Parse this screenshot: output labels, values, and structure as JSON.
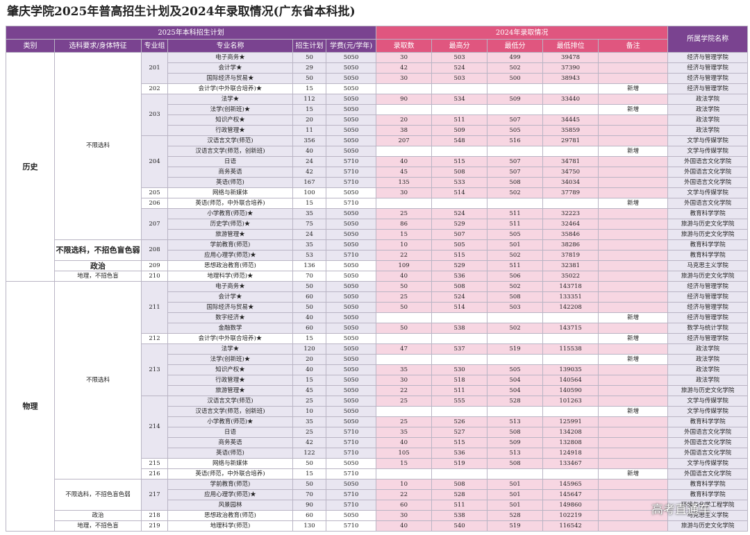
{
  "title": "肇庆学院2025年普高招生计划及2024年录取情况(广东省本科批)",
  "watermark": "高考直通车",
  "headers": {
    "plan_group": "2025年本科招生计划",
    "admit_group": "2024年录取情况",
    "college": "所属学院名称",
    "category": "类别",
    "subject_req": "选科要求/身体特征",
    "group_no": "专业组",
    "major": "专业名称",
    "plan": "招生计划",
    "fee": "学费(元/学年)",
    "admitted": "录取数",
    "max_score": "最高分",
    "min_score": "最低分",
    "min_rank": "最低排位",
    "note": "备注"
  },
  "sections": [
    {
      "category": "历史",
      "subgroups": [
        {
          "requirement": "不限选科",
          "req_style": "plain",
          "groups": [
            {
              "code": "201",
              "rows": [
                {
                  "major": "电子商务★",
                  "plan": "50",
                  "fee": "5050",
                  "admitted": "30",
                  "max": "503",
                  "min": "499",
                  "rank": "39478",
                  "note": "",
                  "college": "经济与管理学院"
                },
                {
                  "major": "会计学★",
                  "plan": "29",
                  "fee": "5050",
                  "admitted": "42",
                  "max": "524",
                  "min": "502",
                  "rank": "37390",
                  "note": "",
                  "college": "经济与管理学院"
                },
                {
                  "major": "国际经济与贸易★",
                  "plan": "50",
                  "fee": "5050",
                  "admitted": "30",
                  "max": "503",
                  "min": "500",
                  "rank": "38943",
                  "note": "",
                  "college": "经济与管理学院"
                }
              ]
            },
            {
              "code": "202",
              "rows": [
                {
                  "major": "会计学(中外联合培养)★",
                  "plan": "15",
                  "fee": "5050",
                  "admitted": "",
                  "max": "",
                  "min": "",
                  "rank": "",
                  "note": "新增",
                  "college": "经济与管理学院"
                }
              ]
            },
            {
              "code": "203",
              "rows": [
                {
                  "major": "法学★",
                  "plan": "112",
                  "fee": "5050",
                  "admitted": "90",
                  "max": "534",
                  "min": "509",
                  "rank": "33440",
                  "note": "",
                  "college": "政法学院"
                },
                {
                  "major": "法学(创新班)★",
                  "plan": "15",
                  "fee": "5050",
                  "admitted": "",
                  "max": "",
                  "min": "",
                  "rank": "",
                  "note": "新增",
                  "college": "政法学院"
                },
                {
                  "major": "知识产权★",
                  "plan": "20",
                  "fee": "5050",
                  "admitted": "20",
                  "max": "511",
                  "min": "507",
                  "rank": "34445",
                  "note": "",
                  "college": "政法学院"
                },
                {
                  "major": "行政管理★",
                  "plan": "11",
                  "fee": "5050",
                  "admitted": "38",
                  "max": "509",
                  "min": "505",
                  "rank": "35859",
                  "note": "",
                  "college": "政法学院"
                }
              ]
            },
            {
              "code": "204",
              "rows": [
                {
                  "major": "汉语言文学(师范)",
                  "plan": "356",
                  "fee": "5050",
                  "admitted": "207",
                  "max": "548",
                  "min": "516",
                  "rank": "29781",
                  "note": "",
                  "college": "文学与传媒学院"
                },
                {
                  "major": "汉语言文学(师范，创新班)",
                  "plan": "40",
                  "fee": "5050",
                  "admitted": "",
                  "max": "",
                  "min": "",
                  "rank": "",
                  "note": "新增",
                  "college": "文学与传媒学院"
                },
                {
                  "major": "日语",
                  "plan": "24",
                  "fee": "5710",
                  "admitted": "40",
                  "max": "515",
                  "min": "507",
                  "rank": "34781",
                  "note": "",
                  "college": "外国语言文化学院"
                },
                {
                  "major": "商务英语",
                  "plan": "42",
                  "fee": "5710",
                  "admitted": "45",
                  "max": "508",
                  "min": "507",
                  "rank": "34750",
                  "note": "",
                  "college": "外国语言文化学院"
                },
                {
                  "major": "英语(师范)",
                  "plan": "167",
                  "fee": "5710",
                  "admitted": "135",
                  "max": "533",
                  "min": "508",
                  "rank": "34034",
                  "note": "",
                  "college": "外国语言文化学院"
                }
              ]
            },
            {
              "code": "205",
              "rows": [
                {
                  "major": "网络与新媒体",
                  "plan": "100",
                  "fee": "5050",
                  "admitted": "30",
                  "max": "514",
                  "min": "502",
                  "rank": "37789",
                  "note": "",
                  "college": "文学与传媒学院"
                }
              ]
            },
            {
              "code": "206",
              "rows": [
                {
                  "major": "英语(师范，中外联合培养)",
                  "plan": "15",
                  "fee": "5710",
                  "admitted": "",
                  "max": "",
                  "min": "",
                  "rank": "",
                  "note": "新增",
                  "college": "外国语言文化学院"
                }
              ]
            },
            {
              "code": "207",
              "rows": [
                {
                  "major": "小学教育(师范)★",
                  "plan": "35",
                  "fee": "5050",
                  "admitted": "25",
                  "max": "524",
                  "min": "511",
                  "rank": "32223",
                  "note": "",
                  "college": "教育科学学院"
                },
                {
                  "major": "历史学(师范)★",
                  "plan": "75",
                  "fee": "5050",
                  "admitted": "86",
                  "max": "529",
                  "min": "511",
                  "rank": "32464",
                  "note": "",
                  "college": "旅游与历史文化学院"
                },
                {
                  "major": "旅游管理★",
                  "plan": "24",
                  "fee": "5050",
                  "admitted": "15",
                  "max": "507",
                  "min": "505",
                  "rank": "35846",
                  "note": "",
                  "college": "旅游与历史文化学院"
                }
              ]
            }
          ]
        },
        {
          "requirement": "不限选科，不招色盲色弱",
          "req_style": "bold",
          "groups": [
            {
              "code": "208",
              "rows": [
                {
                  "major": "学前教育(师范)",
                  "plan": "35",
                  "fee": "5050",
                  "admitted": "10",
                  "max": "505",
                  "min": "501",
                  "rank": "38286",
                  "note": "",
                  "college": "教育科学学院"
                },
                {
                  "major": "应用心理学(师范)★",
                  "plan": "53",
                  "fee": "5710",
                  "admitted": "22",
                  "max": "515",
                  "min": "502",
                  "rank": "37819",
                  "note": "",
                  "college": "教育科学学院"
                }
              ]
            }
          ]
        },
        {
          "requirement": "政治",
          "req_style": "bold",
          "groups": [
            {
              "code": "209",
              "rows": [
                {
                  "major": "思想政治教育(师范)",
                  "plan": "136",
                  "fee": "5050",
                  "admitted": "109",
                  "max": "529",
                  "min": "511",
                  "rank": "32381",
                  "note": "",
                  "college": "马克思主义学院"
                }
              ]
            }
          ]
        },
        {
          "requirement": "地理，不招色盲",
          "req_style": "plain",
          "groups": [
            {
              "code": "210",
              "rows": [
                {
                  "major": "地理科学(师范)★",
                  "plan": "70",
                  "fee": "5050",
                  "admitted": "40",
                  "max": "536",
                  "min": "506",
                  "rank": "35022",
                  "note": "",
                  "college": "旅游与历史文化学院"
                }
              ]
            }
          ]
        }
      ]
    },
    {
      "category": "物理",
      "subgroups": [
        {
          "requirement": "不限选科",
          "req_style": "plain",
          "groups": [
            {
              "code": "211",
              "rows": [
                {
                  "major": "电子商务★",
                  "plan": "50",
                  "fee": "5050",
                  "admitted": "50",
                  "max": "508",
                  "min": "502",
                  "rank": "143718",
                  "note": "",
                  "college": "经济与管理学院"
                },
                {
                  "major": "会计学★",
                  "plan": "60",
                  "fee": "5050",
                  "admitted": "25",
                  "max": "524",
                  "min": "508",
                  "rank": "133351",
                  "note": "",
                  "college": "经济与管理学院"
                },
                {
                  "major": "国际经济与贸易★",
                  "plan": "50",
                  "fee": "5050",
                  "admitted": "50",
                  "max": "514",
                  "min": "503",
                  "rank": "142208",
                  "note": "",
                  "college": "经济与管理学院"
                },
                {
                  "major": "数字经济★",
                  "plan": "40",
                  "fee": "5050",
                  "admitted": "",
                  "max": "",
                  "min": "",
                  "rank": "",
                  "note": "新增",
                  "college": "经济与管理学院"
                },
                {
                  "major": "金融数学",
                  "plan": "60",
                  "fee": "5050",
                  "admitted": "50",
                  "max": "538",
                  "min": "502",
                  "rank": "143715",
                  "note": "",
                  "college": "数学与统计学院"
                }
              ]
            },
            {
              "code": "212",
              "rows": [
                {
                  "major": "会计学(中外联合培养)★",
                  "plan": "15",
                  "fee": "5050",
                  "admitted": "",
                  "max": "",
                  "min": "",
                  "rank": "",
                  "note": "新增",
                  "college": "经济与管理学院"
                }
              ]
            },
            {
              "code": "213",
              "rows": [
                {
                  "major": "法学★",
                  "plan": "120",
                  "fee": "5050",
                  "admitted": "47",
                  "max": "537",
                  "min": "519",
                  "rank": "115538",
                  "note": "",
                  "college": "政法学院"
                },
                {
                  "major": "法学(创新班)★",
                  "plan": "20",
                  "fee": "5050",
                  "admitted": "",
                  "max": "",
                  "min": "",
                  "rank": "",
                  "note": "新增",
                  "college": "政法学院"
                },
                {
                  "major": "知识产权★",
                  "plan": "40",
                  "fee": "5050",
                  "admitted": "35",
                  "max": "530",
                  "min": "505",
                  "rank": "139035",
                  "note": "",
                  "college": "政法学院"
                },
                {
                  "major": "行政管理★",
                  "plan": "15",
                  "fee": "5050",
                  "admitted": "30",
                  "max": "518",
                  "min": "504",
                  "rank": "140564",
                  "note": "",
                  "college": "政法学院"
                },
                {
                  "major": "旅游管理★",
                  "plan": "45",
                  "fee": "5050",
                  "admitted": "22",
                  "max": "511",
                  "min": "504",
                  "rank": "140590",
                  "note": "",
                  "college": "旅游与历史文化学院"
                }
              ]
            },
            {
              "code": "214",
              "rows": [
                {
                  "major": "汉语言文学(师范)",
                  "plan": "25",
                  "fee": "5050",
                  "admitted": "25",
                  "max": "555",
                  "min": "528",
                  "rank": "101263",
                  "note": "",
                  "college": "文学与传媒学院"
                },
                {
                  "major": "汉语言文学(师范，创新班)",
                  "plan": "10",
                  "fee": "5050",
                  "admitted": "",
                  "max": "",
                  "min": "",
                  "rank": "",
                  "note": "新增",
                  "college": "文学与传媒学院"
                },
                {
                  "major": "小学教育(师范)★",
                  "plan": "35",
                  "fee": "5050",
                  "admitted": "25",
                  "max": "526",
                  "min": "513",
                  "rank": "125991",
                  "note": "",
                  "college": "教育科学学院"
                },
                {
                  "major": "日语",
                  "plan": "25",
                  "fee": "5710",
                  "admitted": "35",
                  "max": "527",
                  "min": "508",
                  "rank": "134208",
                  "note": "",
                  "college": "外国语言文化学院"
                },
                {
                  "major": "商务英语",
                  "plan": "42",
                  "fee": "5710",
                  "admitted": "40",
                  "max": "515",
                  "min": "509",
                  "rank": "132808",
                  "note": "",
                  "college": "外国语言文化学院"
                },
                {
                  "major": "英语(师范)",
                  "plan": "122",
                  "fee": "5710",
                  "admitted": "105",
                  "max": "536",
                  "min": "513",
                  "rank": "124918",
                  "note": "",
                  "college": "外国语言文化学院"
                }
              ]
            },
            {
              "code": "215",
              "rows": [
                {
                  "major": "网络与新媒体",
                  "plan": "50",
                  "fee": "5050",
                  "admitted": "15",
                  "max": "519",
                  "min": "508",
                  "rank": "133467",
                  "note": "",
                  "college": "文学与传媒学院"
                }
              ]
            },
            {
              "code": "216",
              "rows": [
                {
                  "major": "英语(师范，中外联合培养)",
                  "plan": "15",
                  "fee": "5710",
                  "admitted": "",
                  "max": "",
                  "min": "",
                  "rank": "",
                  "note": "新增",
                  "college": "外国语言文化学院"
                }
              ]
            }
          ]
        },
        {
          "requirement": "不限选科，不招色盲色弱",
          "req_style": "plain",
          "groups": [
            {
              "code": "217",
              "rows": [
                {
                  "major": "学前教育(师范)",
                  "plan": "50",
                  "fee": "5050",
                  "admitted": "10",
                  "max": "508",
                  "min": "501",
                  "rank": "145965",
                  "note": "",
                  "college": "教育科学学院"
                },
                {
                  "major": "应用心理学(师范)★",
                  "plan": "70",
                  "fee": "5710",
                  "admitted": "22",
                  "max": "528",
                  "min": "501",
                  "rank": "145647",
                  "note": "",
                  "college": "教育科学学院"
                },
                {
                  "major": "风景园林",
                  "plan": "90",
                  "fee": "5710",
                  "admitted": "60",
                  "max": "511",
                  "min": "501",
                  "rank": "149860",
                  "note": "",
                  "college": "环境与化学工程学院"
                }
              ]
            }
          ]
        },
        {
          "requirement": "政治",
          "req_style": "plain",
          "groups": [
            {
              "code": "218",
              "rows": [
                {
                  "major": "思想政治教育(师范)",
                  "plan": "60",
                  "fee": "5050",
                  "admitted": "30",
                  "max": "538",
                  "min": "528",
                  "rank": "102219",
                  "note": "",
                  "college": "马克思主义学院"
                }
              ]
            }
          ]
        },
        {
          "requirement": "地理，不招色盲",
          "req_style": "plain",
          "groups": [
            {
              "code": "219",
              "rows": [
                {
                  "major": "地理科学(师范)",
                  "plan": "130",
                  "fee": "5710",
                  "admitted": "40",
                  "max": "540",
                  "min": "519",
                  "rank": "116542",
                  "note": "",
                  "college": "旅游与历史文化学院"
                }
              ]
            }
          ]
        }
      ]
    }
  ]
}
